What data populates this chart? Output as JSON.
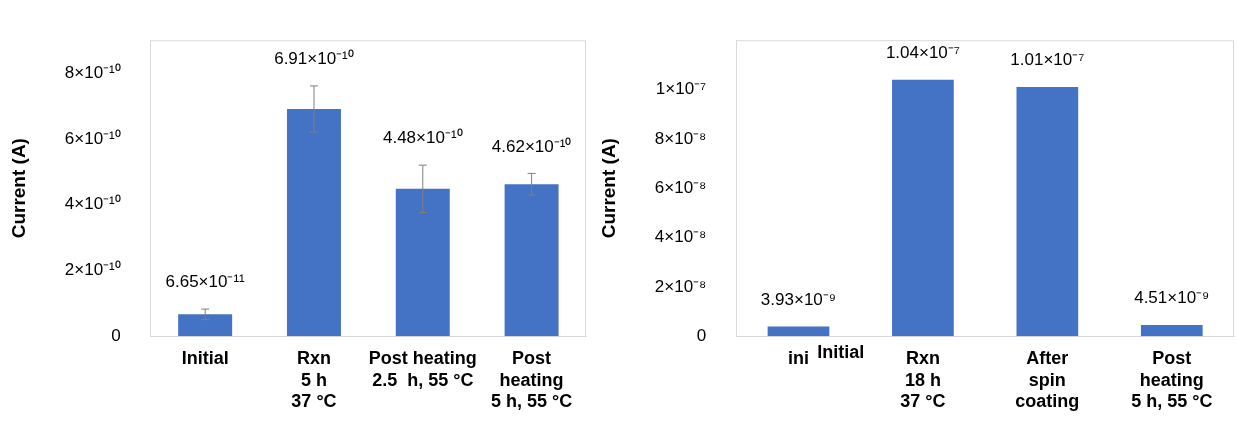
{
  "chart_data": [
    {
      "type": "bar",
      "ylabel": "Current (A)",
      "categories": [
        "Initial",
        "Rxn\n5 h\n37 °C",
        "Post heating\n2.5  h, 55 °C",
        "Post\nheating\n5 h, 55 °C"
      ],
      "series": [
        {
          "color": "#4472c4",
          "values": [
            6.65e-11,
            6.91e-10,
            4.48e-10,
            4.62e-10
          ],
          "errors": [
            1.6e-11,
            7e-11,
            7.2e-11,
            3.3e-11
          ],
          "value_labels": [
            "6.65×10⁻¹¹",
            "6.91×10⁻¹⁰",
            "4.48×10⁻¹⁰",
            "4.62×10⁻¹⁰"
          ]
        }
      ],
      "ylim": [
        0,
        9e-10
      ],
      "yticks": [
        0,
        {
          "value": 2e-10,
          "label": "2×10⁻¹⁰"
        },
        {
          "value": 4e-10,
          "label": "4×10⁻¹⁰"
        },
        {
          "value": 6e-10,
          "label": "6×10⁻¹⁰"
        },
        {
          "value": 8e-10,
          "label": "8×10⁻¹⁰"
        }
      ],
      "grid": false,
      "legend": false
    },
    {
      "type": "bar",
      "ylabel": "Current (A)",
      "categories": [
        "ini",
        "Rxn\n18 h\n37 °C",
        "After\nspin\ncoating",
        "Post\nheating\n5 h, 55 °C"
      ],
      "series": [
        {
          "color": "#4472c4",
          "values": [
            3.93e-09,
            1.04e-07,
            1.01e-07,
            4.51e-09
          ],
          "value_labels": [
            "3.93×10⁻⁹",
            "1.04×10⁻⁷",
            "1.01×10⁻⁷",
            "4.51×10⁻⁹"
          ]
        }
      ],
      "ylim": [
        0,
        1.2e-07
      ],
      "yticks": [
        0,
        {
          "value": 2e-08,
          "label": "2×10⁻⁸"
        },
        {
          "value": 4e-08,
          "label": "4×10⁻⁸"
        },
        {
          "value": 6e-08,
          "label": "6×10⁻⁸"
        },
        {
          "value": 8e-08,
          "label": "8×10⁻⁸"
        },
        {
          "value": 1e-07,
          "label": "1×10⁻⁷"
        }
      ],
      "grid": false,
      "legend": false,
      "annotations": [
        "Initial"
      ]
    }
  ]
}
